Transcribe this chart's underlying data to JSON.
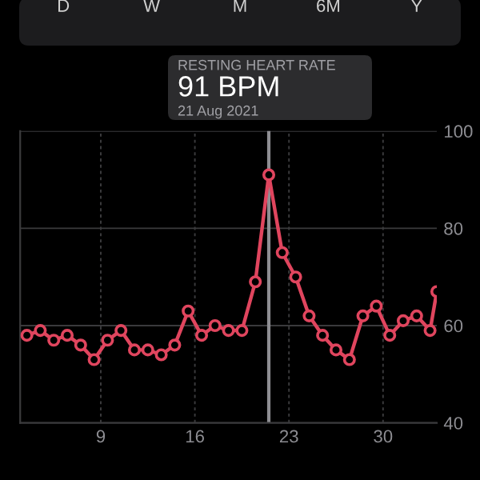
{
  "chart_data": {
    "type": "line",
    "x": [
      3.5,
      4.5,
      5.5,
      6.5,
      7.5,
      8.5,
      9.5,
      10.5,
      11.5,
      12.5,
      13.5,
      14.5,
      15.5,
      16.5,
      17.5,
      18.5,
      19.5,
      20.5,
      21.5,
      22.5,
      23.5,
      24.5,
      25.5,
      26.5,
      27.5,
      28.5,
      29.5,
      30.5,
      31.5,
      32.5,
      33.5,
      34
    ],
    "series": [
      {
        "color": "#e0455e",
        "values": [
          58,
          59,
          57,
          58,
          56,
          53,
          57,
          59,
          55,
          55,
          54,
          56,
          63,
          58,
          60,
          59,
          59,
          69,
          91,
          75,
          70,
          62,
          58,
          55,
          53,
          62,
          64,
          58,
          61,
          62,
          59,
          67
        ]
      }
    ],
    "xlim": [
      3,
      34
    ],
    "xticks": [
      9,
      16,
      23,
      30
    ],
    "ylim": [
      40,
      100
    ],
    "yticks": [
      40,
      60,
      80,
      100
    ],
    "grid": true,
    "marker": "circle",
    "line_style": "solid",
    "ref_lines": [
      {
        "axis": "x",
        "value": 21.5,
        "color": "#8e8e93"
      }
    ],
    "annotations": [
      "D",
      "W",
      "M",
      "6M",
      "Y",
      "RESTING HEART RATE",
      "91 BPM",
      "21 Aug 2021"
    ]
  }
}
